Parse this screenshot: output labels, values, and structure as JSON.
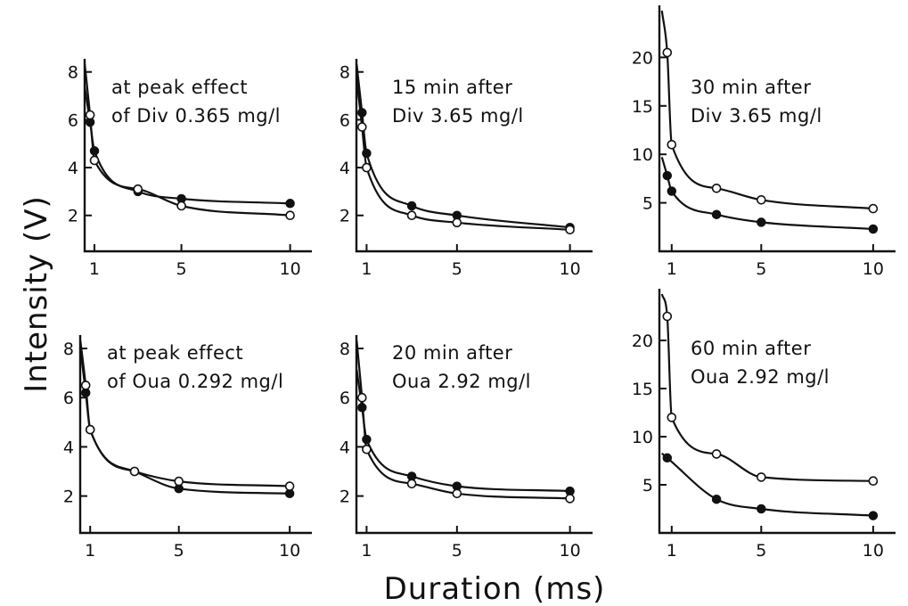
{
  "figure": {
    "ylabel": "Intensity (V)",
    "xlabel": "Duration (ms)"
  },
  "chart_data": [
    {
      "type": "line",
      "panel": "top-left",
      "annotation": [
        "at peak effect",
        "of Div 0.365 mg/l"
      ],
      "x_ticks": [
        1,
        5,
        10
      ],
      "y_ticks": [
        2,
        4,
        6,
        8
      ],
      "xlim": [
        0.55,
        11
      ],
      "ylim": [
        0.5,
        8.4
      ],
      "series": [
        {
          "marker": "filled",
          "x": [
            0.8,
            1,
            3,
            5,
            10
          ],
          "y": [
            5.9,
            4.7,
            3.0,
            2.7,
            2.5
          ]
        },
        {
          "marker": "open",
          "x": [
            0.8,
            1,
            3,
            5,
            10
          ],
          "y": [
            6.2,
            4.3,
            3.1,
            2.4,
            2.0
          ]
        }
      ]
    },
    {
      "type": "line",
      "panel": "top-middle",
      "annotation": [
        "15 min after",
        "Div 3.65 mg/l"
      ],
      "x_ticks": [
        1,
        5,
        10
      ],
      "y_ticks": [
        2,
        4,
        6,
        8
      ],
      "xlim": [
        0.55,
        11
      ],
      "ylim": [
        0.5,
        8.4
      ],
      "series": [
        {
          "marker": "filled",
          "x": [
            0.8,
            1,
            3,
            5,
            10
          ],
          "y": [
            6.3,
            4.6,
            2.4,
            2.0,
            1.5
          ]
        },
        {
          "marker": "open",
          "x": [
            0.8,
            1,
            3,
            5,
            10
          ],
          "y": [
            5.7,
            4.0,
            2.0,
            1.7,
            1.4
          ]
        }
      ]
    },
    {
      "type": "line",
      "panel": "top-right",
      "annotation": [
        "30 min after",
        "Div 3.65 mg/l"
      ],
      "x_ticks": [
        1,
        5,
        10
      ],
      "y_ticks": [
        5,
        10,
        15,
        20
      ],
      "xlim": [
        0.45,
        11
      ],
      "ylim": [
        0,
        25
      ],
      "series": [
        {
          "marker": "filled",
          "x": [
            0.8,
            1,
            3,
            5,
            10
          ],
          "y": [
            7.8,
            6.2,
            3.8,
            3.0,
            2.3
          ]
        },
        {
          "marker": "open",
          "x": [
            0.8,
            1,
            3,
            5,
            10
          ],
          "y": [
            20.5,
            11.0,
            6.5,
            5.3,
            4.4
          ]
        }
      ]
    },
    {
      "type": "line",
      "panel": "bottom-left",
      "annotation": [
        "at peak effect",
        "of Oua 0.292 mg/l"
      ],
      "x_ticks": [
        1,
        5,
        10
      ],
      "y_ticks": [
        2,
        4,
        6,
        8
      ],
      "xlim": [
        0.55,
        11
      ],
      "ylim": [
        0.5,
        8.4
      ],
      "series": [
        {
          "marker": "filled",
          "x": [
            0.8,
            1,
            3,
            5,
            10
          ],
          "y": [
            6.2,
            4.7,
            3.0,
            2.3,
            2.1
          ]
        },
        {
          "marker": "open",
          "x": [
            0.8,
            1,
            3,
            5,
            10
          ],
          "y": [
            6.5,
            4.7,
            3.0,
            2.6,
            2.4
          ]
        }
      ]
    },
    {
      "type": "line",
      "panel": "bottom-middle",
      "annotation": [
        "20 min after",
        "Oua 2.92 mg/l"
      ],
      "x_ticks": [
        1,
        5,
        10
      ],
      "y_ticks": [
        2,
        4,
        6,
        8
      ],
      "xlim": [
        0.55,
        11
      ],
      "ylim": [
        0.5,
        8.4
      ],
      "series": [
        {
          "marker": "filled",
          "x": [
            0.8,
            1,
            3,
            5,
            10
          ],
          "y": [
            5.6,
            4.3,
            2.8,
            2.4,
            2.2
          ]
        },
        {
          "marker": "open",
          "x": [
            0.8,
            1,
            3,
            5,
            10
          ],
          "y": [
            6.0,
            3.9,
            2.5,
            2.1,
            1.9
          ]
        }
      ]
    },
    {
      "type": "line",
      "panel": "bottom-right",
      "annotation": [
        "60 min after",
        "Oua 2.92 mg/l"
      ],
      "x_ticks": [
        1,
        5,
        10
      ],
      "y_ticks": [
        5,
        10,
        15,
        20
      ],
      "xlim": [
        0.45,
        11
      ],
      "ylim": [
        0,
        25
      ],
      "series": [
        {
          "marker": "filled",
          "x": [
            0.8,
            3,
            5,
            10
          ],
          "y": [
            7.8,
            3.5,
            2.5,
            1.8
          ]
        },
        {
          "marker": "open",
          "x": [
            0.8,
            1,
            3,
            5,
            10
          ],
          "y": [
            22.5,
            12.0,
            8.2,
            5.8,
            5.4
          ]
        }
      ]
    }
  ]
}
